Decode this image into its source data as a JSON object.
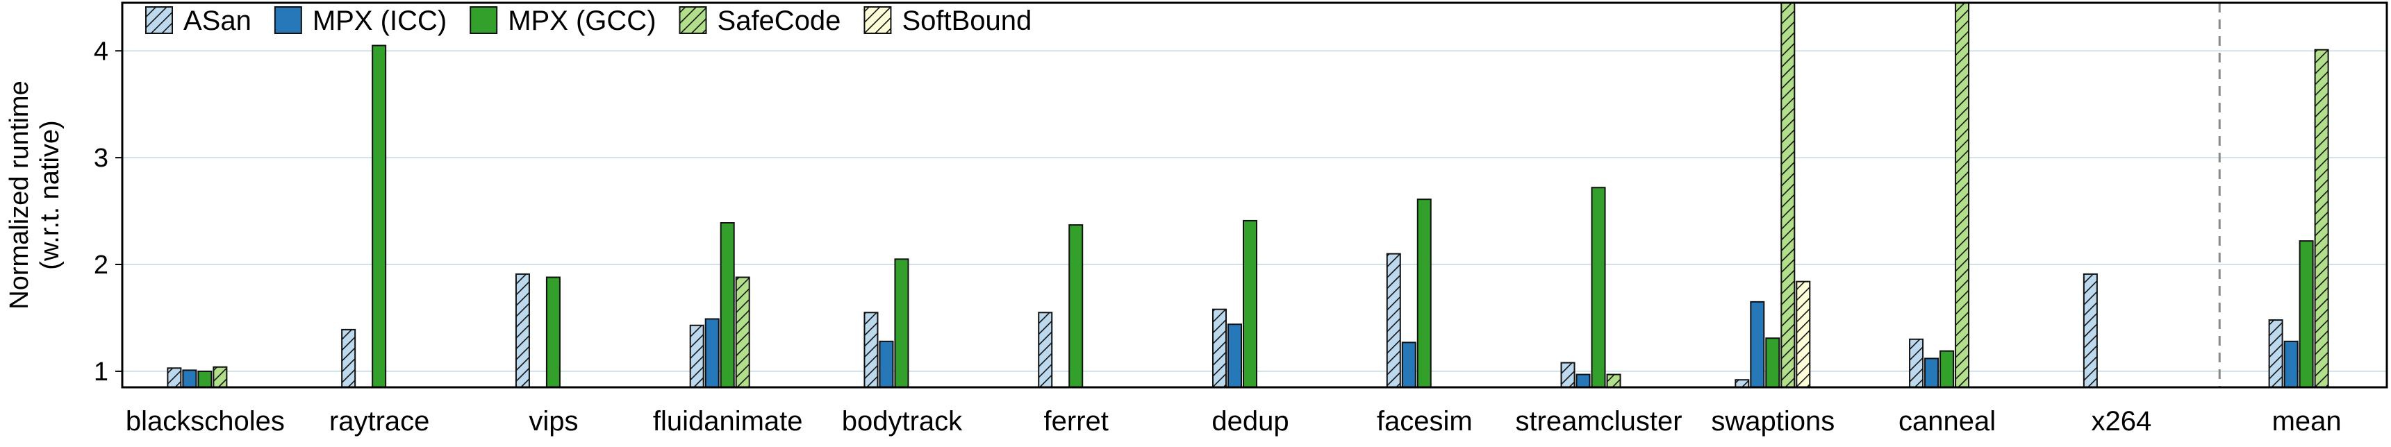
{
  "chart_data": {
    "type": "bar",
    "ylabel_line1": "Normalized runtime",
    "ylabel_line2": "(w.r.t. native)",
    "ylim": [
      0.85,
      4.45
    ],
    "yticks": [
      1,
      2,
      3,
      4
    ],
    "grid": true,
    "legend_position": "top-left",
    "categories": [
      "blackscholes",
      "raytrace",
      "vips",
      "fluidanimate",
      "bodytrack",
      "ferret",
      "dedup",
      "facesim",
      "streamcluster",
      "swaptions",
      "canneal",
      "x264",
      "mean"
    ],
    "series": [
      {
        "name": "ASan",
        "color": "#bcd9ee",
        "hatch": true,
        "values": [
          1.03,
          1.39,
          1.91,
          1.43,
          1.55,
          1.55,
          1.58,
          2.1,
          1.08,
          0.92,
          1.3,
          1.91,
          1.48
        ]
      },
      {
        "name": "MPX (ICC)",
        "color": "#2678b8",
        "hatch": false,
        "values": [
          1.01,
          null,
          null,
          1.49,
          1.28,
          null,
          1.44,
          1.27,
          0.97,
          1.65,
          1.12,
          null,
          1.28
        ]
      },
      {
        "name": "MPX (GCC)",
        "color": "#33a02c",
        "hatch": false,
        "values": [
          1.0,
          4.05,
          1.88,
          2.39,
          2.05,
          2.37,
          2.41,
          2.61,
          2.72,
          1.31,
          1.19,
          null,
          2.22
        ]
      },
      {
        "name": "SafeCode",
        "color": "#b2df8a",
        "hatch": true,
        "values": [
          1.04,
          null,
          null,
          1.88,
          null,
          null,
          null,
          null,
          0.97,
          4.5,
          4.5,
          null,
          4.01
        ]
      },
      {
        "name": "SoftBound",
        "color": "#fefed8",
        "hatch": true,
        "values": [
          null,
          null,
          null,
          null,
          null,
          null,
          null,
          null,
          null,
          1.84,
          null,
          null,
          null
        ]
      }
    ]
  }
}
